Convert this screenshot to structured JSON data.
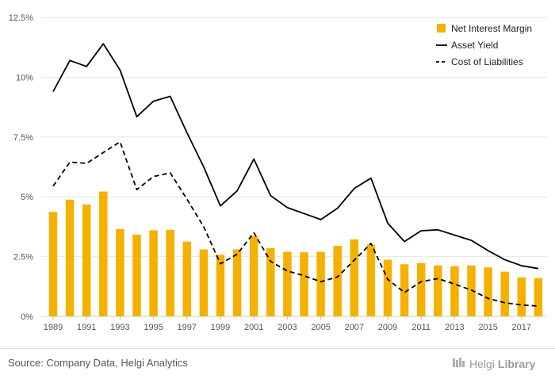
{
  "chart_data": {
    "type": "bar",
    "x": [
      1989,
      1990,
      1991,
      1992,
      1993,
      1994,
      1995,
      1996,
      1997,
      1998,
      1999,
      2000,
      2001,
      2002,
      2003,
      2004,
      2005,
      2006,
      2007,
      2008,
      2009,
      2010,
      2011,
      2012,
      2013,
      2014,
      2015,
      2016,
      2017,
      2018
    ],
    "x_tick_labels": [
      "1989",
      "1991",
      "1993",
      "1995",
      "1997",
      "1999",
      "2001",
      "2003",
      "2005",
      "2007",
      "2009",
      "2011",
      "2013",
      "2015",
      "2017"
    ],
    "y_tick_labels": [
      "0%",
      "2.5%",
      "5%",
      "7.5%",
      "10%",
      "12.5%"
    ],
    "ylim": [
      0,
      12.5
    ],
    "grid": true,
    "legend_position": "top-right",
    "series": [
      {
        "name": "Net Interest Margin",
        "kind": "bar",
        "color": "#f5b100",
        "values": [
          4.37,
          4.88,
          4.68,
          5.22,
          3.65,
          3.42,
          3.6,
          3.62,
          3.13,
          2.8,
          2.58,
          2.8,
          3.35,
          2.85,
          2.7,
          2.68,
          2.7,
          2.95,
          3.22,
          3.0,
          2.37,
          2.18,
          2.23,
          2.13,
          2.1,
          2.13,
          2.05,
          1.87,
          1.63,
          1.6
        ]
      },
      {
        "name": "Asset Yield",
        "kind": "line",
        "dash": "solid",
        "color": "#000000",
        "values": [
          9.4,
          10.7,
          10.45,
          11.4,
          10.3,
          8.35,
          9.0,
          9.2,
          7.68,
          6.25,
          4.62,
          5.25,
          6.58,
          5.05,
          4.55,
          4.3,
          4.05,
          4.52,
          5.35,
          5.78,
          3.9,
          3.13,
          3.58,
          3.62,
          3.4,
          3.18,
          2.75,
          2.37,
          2.12,
          2.0
        ]
      },
      {
        "name": "Cost of Liabilities",
        "kind": "line",
        "dash": "dashed",
        "color": "#000000",
        "values": [
          5.45,
          6.45,
          6.4,
          6.85,
          7.3,
          5.3,
          5.85,
          6.0,
          4.9,
          3.75,
          2.2,
          2.6,
          3.5,
          2.3,
          1.9,
          1.7,
          1.45,
          1.65,
          2.35,
          3.05,
          1.55,
          1.0,
          1.45,
          1.58,
          1.35,
          1.1,
          0.75,
          0.57,
          0.48,
          0.43
        ]
      }
    ]
  },
  "footer": {
    "source": "Source: Company Data, Helgi Analytics",
    "brand_name": "Helgi",
    "brand_suffix": "Library"
  }
}
